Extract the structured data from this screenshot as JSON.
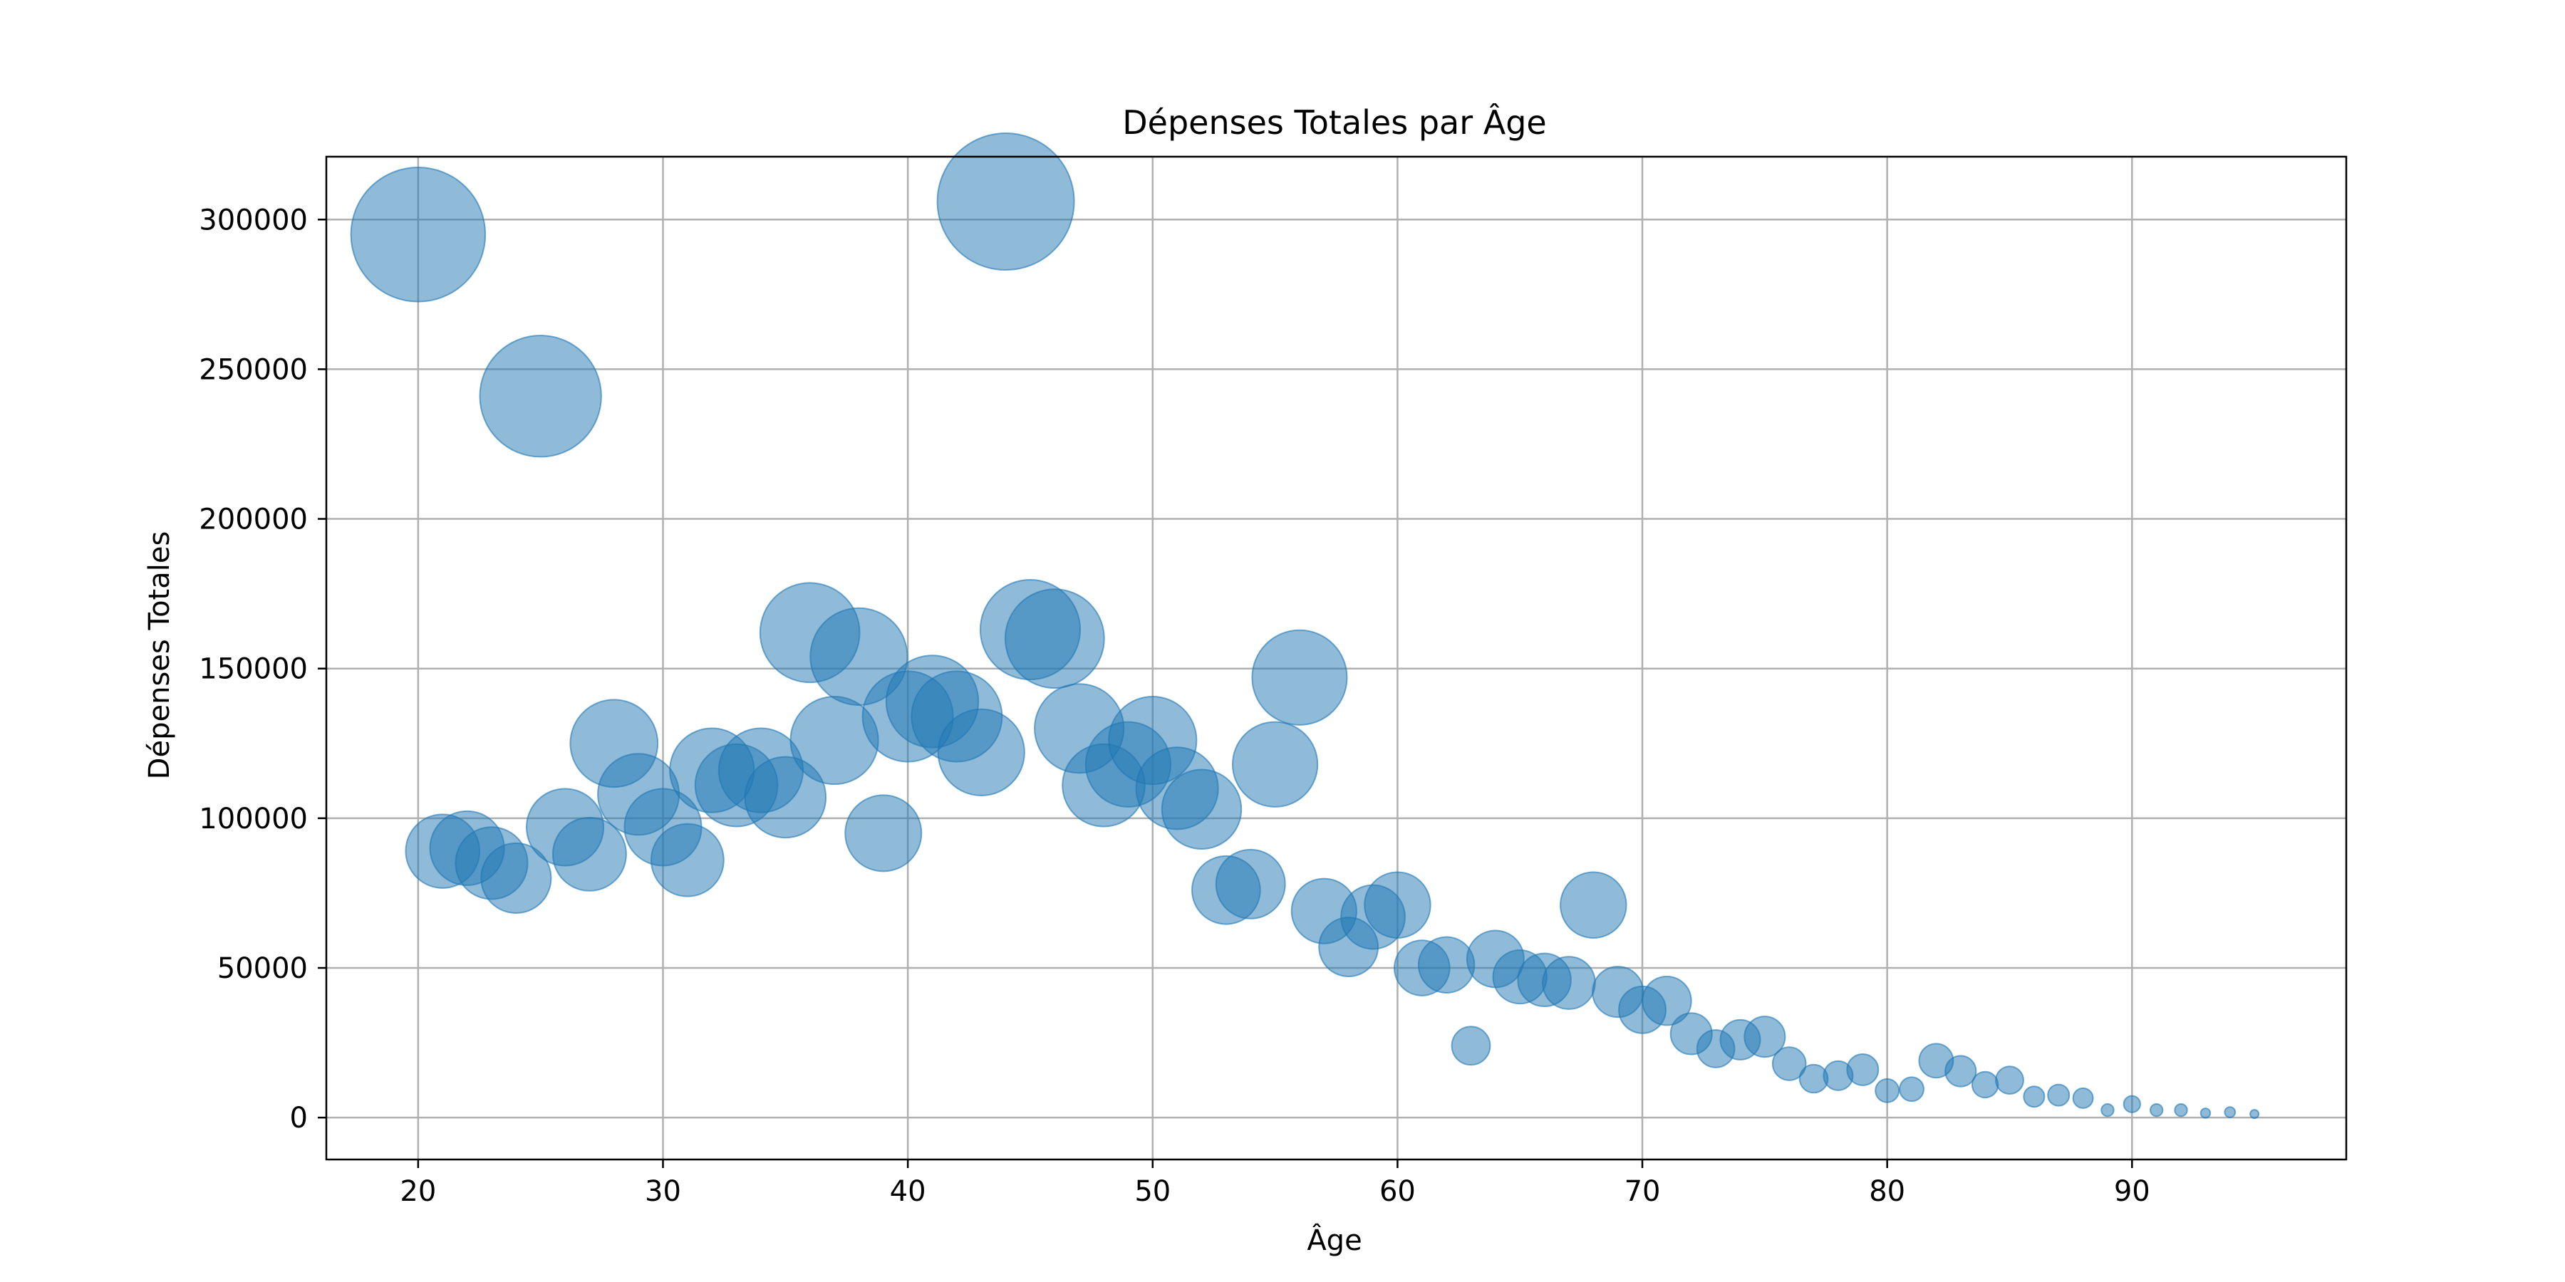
{
  "chart_data": {
    "type": "scatter",
    "title": "Dépenses Totales par Âge",
    "xlabel": "Âge",
    "ylabel": "Dépenses Totales",
    "xlim": [
      16.25,
      98.75
    ],
    "ylim": [
      -14000,
      321000
    ],
    "xticks": [
      20,
      30,
      40,
      50,
      60,
      70,
      80,
      90
    ],
    "yticks": [
      0,
      50000,
      100000,
      150000,
      200000,
      250000,
      300000
    ],
    "grid": true,
    "color": "#1f77b4",
    "size_encoding": "bubble area proportional to the y value",
    "points": [
      {
        "x": 20,
        "y": 295000
      },
      {
        "x": 21,
        "y": 89000
      },
      {
        "x": 22,
        "y": 90000
      },
      {
        "x": 23,
        "y": 85000
      },
      {
        "x": 24,
        "y": 80000
      },
      {
        "x": 25,
        "y": 241000
      },
      {
        "x": 26,
        "y": 97000
      },
      {
        "x": 27,
        "y": 88000
      },
      {
        "x": 28,
        "y": 125000
      },
      {
        "x": 29,
        "y": 108000
      },
      {
        "x": 30,
        "y": 97000
      },
      {
        "x": 31,
        "y": 86000
      },
      {
        "x": 32,
        "y": 116000
      },
      {
        "x": 33,
        "y": 111000
      },
      {
        "x": 34,
        "y": 116000
      },
      {
        "x": 35,
        "y": 107000
      },
      {
        "x": 36,
        "y": 162000
      },
      {
        "x": 37,
        "y": 126000
      },
      {
        "x": 38,
        "y": 154000
      },
      {
        "x": 39,
        "y": 95000
      },
      {
        "x": 40,
        "y": 134000
      },
      {
        "x": 41,
        "y": 139000
      },
      {
        "x": 42,
        "y": 134000
      },
      {
        "x": 43,
        "y": 122000
      },
      {
        "x": 44,
        "y": 306000
      },
      {
        "x": 45,
        "y": 163000
      },
      {
        "x": 46,
        "y": 160000
      },
      {
        "x": 47,
        "y": 130000
      },
      {
        "x": 48,
        "y": 111000
      },
      {
        "x": 49,
        "y": 118000
      },
      {
        "x": 50,
        "y": 126000
      },
      {
        "x": 51,
        "y": 110000
      },
      {
        "x": 52,
        "y": 103000
      },
      {
        "x": 53,
        "y": 76000
      },
      {
        "x": 54,
        "y": 78000
      },
      {
        "x": 55,
        "y": 118000
      },
      {
        "x": 56,
        "y": 147000
      },
      {
        "x": 57,
        "y": 69000
      },
      {
        "x": 58,
        "y": 57000
      },
      {
        "x": 59,
        "y": 67000
      },
      {
        "x": 60,
        "y": 71000
      },
      {
        "x": 61,
        "y": 50000
      },
      {
        "x": 62,
        "y": 51000
      },
      {
        "x": 63,
        "y": 24000
      },
      {
        "x": 64,
        "y": 53000
      },
      {
        "x": 65,
        "y": 47000
      },
      {
        "x": 66,
        "y": 46000
      },
      {
        "x": 67,
        "y": 45000
      },
      {
        "x": 68,
        "y": 71000
      },
      {
        "x": 69,
        "y": 42000
      },
      {
        "x": 70,
        "y": 36000
      },
      {
        "x": 71,
        "y": 39000
      },
      {
        "x": 72,
        "y": 28000
      },
      {
        "x": 73,
        "y": 23000
      },
      {
        "x": 74,
        "y": 26000
      },
      {
        "x": 75,
        "y": 27000
      },
      {
        "x": 76,
        "y": 18000
      },
      {
        "x": 77,
        "y": 13000
      },
      {
        "x": 78,
        "y": 14000
      },
      {
        "x": 79,
        "y": 16000
      },
      {
        "x": 80,
        "y": 9000
      },
      {
        "x": 81,
        "y": 9500
      },
      {
        "x": 82,
        "y": 19000
      },
      {
        "x": 83,
        "y": 15500
      },
      {
        "x": 84,
        "y": 11000
      },
      {
        "x": 85,
        "y": 12500
      },
      {
        "x": 86,
        "y": 7000
      },
      {
        "x": 87,
        "y": 7500
      },
      {
        "x": 88,
        "y": 6500
      },
      {
        "x": 89,
        "y": 2500
      },
      {
        "x": 90,
        "y": 4500
      },
      {
        "x": 91,
        "y": 2500
      },
      {
        "x": 92,
        "y": 2500
      },
      {
        "x": 93,
        "y": 1500
      },
      {
        "x": 94,
        "y": 1800
      },
      {
        "x": 95,
        "y": 1200
      }
    ]
  }
}
